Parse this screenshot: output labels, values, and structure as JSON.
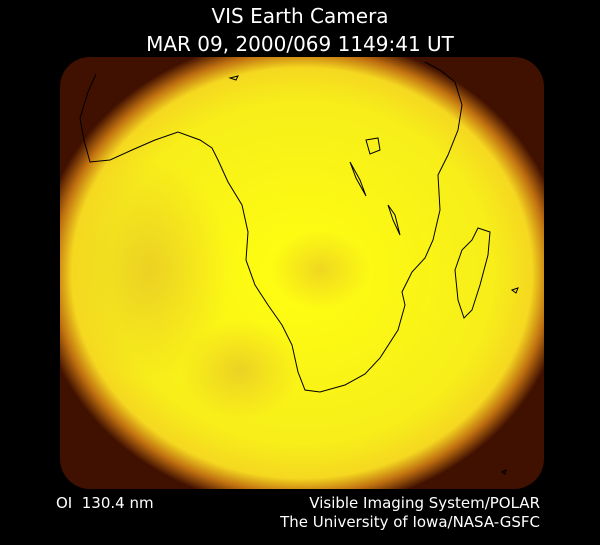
{
  "header": {
    "title": "VIS Earth Camera",
    "timestamp": "MAR 09, 2000/069 1149:41 UT"
  },
  "footer": {
    "wavelength": "OI  130.4 nm",
    "instrument": "Visible Imaging System/POLAR",
    "credit": "The University of Iowa/NASA-GSFC"
  }
}
